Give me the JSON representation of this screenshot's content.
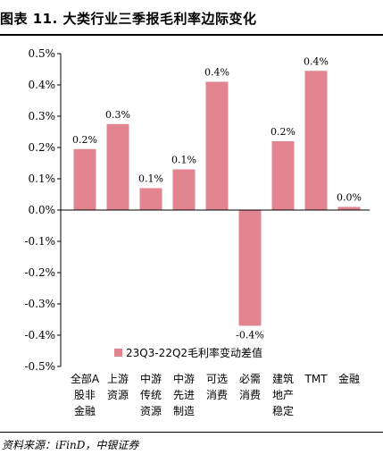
{
  "header": {
    "figure_title": "图表 11. 大类行业三季报毛利率边际变化"
  },
  "footer": {
    "source": "资料来源：iFinD，中银证券"
  },
  "chart_data": {
    "type": "bar",
    "categories": [
      [
        "全部A",
        "股非",
        "金融"
      ],
      [
        "上游",
        "资源"
      ],
      [
        "中游",
        "传统",
        "资源"
      ],
      [
        "中游",
        "先进",
        "制造"
      ],
      [
        "可选",
        "消费"
      ],
      [
        "必需",
        "消费"
      ],
      [
        "建筑",
        "地产",
        "稳定"
      ],
      [
        "TMT"
      ],
      [
        "金融"
      ]
    ],
    "series": [
      {
        "name": "23Q3-22Q2毛利率变动差值",
        "values": [
          0.195,
          0.275,
          0.07,
          0.13,
          0.41,
          -0.37,
          0.22,
          0.445,
          0.01
        ],
        "labels": [
          "0.2%",
          "0.3%",
          "0.1%",
          "0.1%",
          "0.4%",
          "-0.4%",
          "0.2%",
          "0.4%",
          "0.0%"
        ]
      }
    ],
    "ylim": [
      -0.5,
      0.5
    ],
    "yticks": [
      0.5,
      0.4,
      0.3,
      0.2,
      0.1,
      0.0,
      -0.1,
      -0.2,
      -0.3,
      -0.4,
      -0.5
    ],
    "ytick_labels": [
      "0.5%",
      "0.4%",
      "0.3%",
      "0.2%",
      "0.1%",
      "0.0%",
      "-0.1%",
      "-0.2%",
      "-0.3%",
      "-0.4%",
      "-0.5%"
    ],
    "grid": false,
    "legend_position": "bottom-center",
    "colors": {
      "bar": "#e38590"
    }
  }
}
